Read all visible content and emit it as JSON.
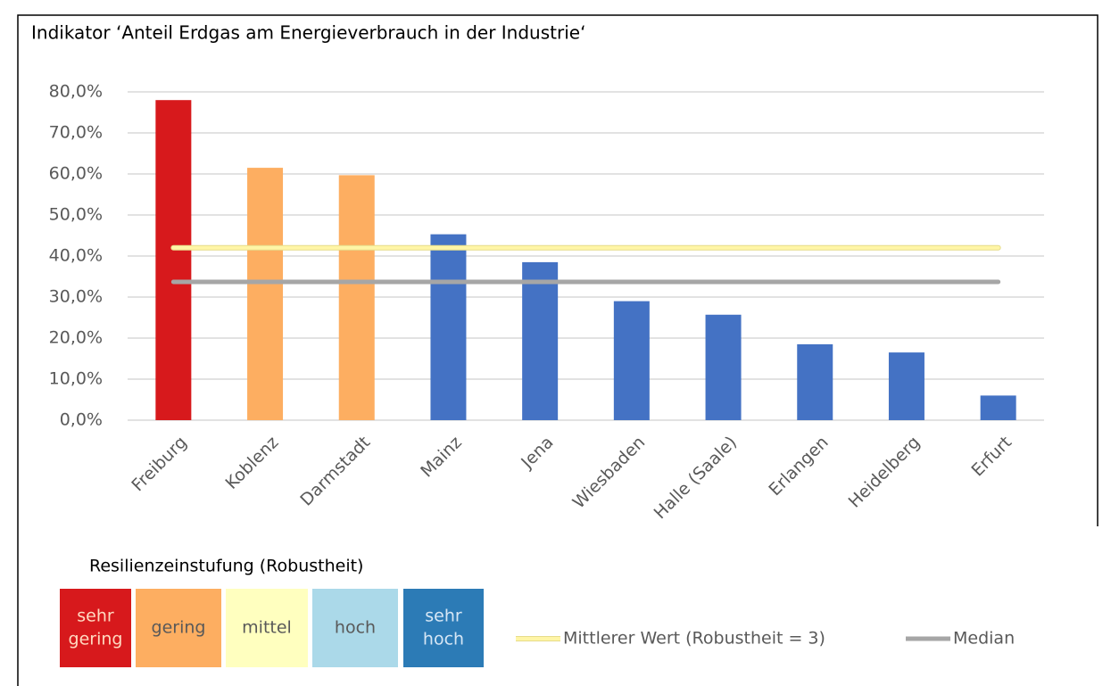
{
  "chart_data": {
    "type": "bar",
    "title": "Indikator ‘Anteil Erdgas am Energieverbrauch in der Industrie‘",
    "categories": [
      "Freiburg",
      "Koblenz",
      "Darmstadt",
      "Mainz",
      "Jena",
      "Wiesbaden",
      "Halle (Saale)",
      "Erlangen",
      "Heidelberg",
      "Erfurt"
    ],
    "values": [
      78.0,
      61.5,
      59.7,
      45.3,
      38.5,
      29.0,
      25.7,
      18.5,
      16.5,
      6.0
    ],
    "colors": [
      "#d7191c",
      "#fdae61",
      "#fdae61",
      "#4472c4",
      "#4472c4",
      "#4472c4",
      "#4472c4",
      "#4472c4",
      "#4472c4",
      "#4472c4"
    ],
    "ylim": [
      0,
      80
    ],
    "yticks": [
      {
        "value": 0,
        "label": "0,0%"
      },
      {
        "value": 10,
        "label": "10,0%"
      },
      {
        "value": 20,
        "label": "20,0%"
      },
      {
        "value": 30,
        "label": "30,0%"
      },
      {
        "value": 40,
        "label": "40,0%"
      },
      {
        "value": 50,
        "label": "50,0%"
      },
      {
        "value": 60,
        "label": "60,0%"
      },
      {
        "value": 70,
        "label": "70,0%"
      },
      {
        "value": 80,
        "label": "80,0%"
      }
    ],
    "grid": true,
    "reference_lines": [
      {
        "name": "Mittlerer Wert (Robustheit = 3)",
        "color": "#fff5a6",
        "value": 42.0
      },
      {
        "name": "Median",
        "color": "#a6a6a6",
        "value": 33.7
      }
    ],
    "rating_legend": {
      "title": "Resilienzeinstufung (Robustheit)",
      "items": [
        {
          "label": [
            "sehr",
            "gering"
          ],
          "color": "#d7191c"
        },
        {
          "label": [
            "gering"
          ],
          "color": "#fdae61"
        },
        {
          "label": [
            "mittel"
          ],
          "color": "#ffffbf"
        },
        {
          "label": [
            "hoch"
          ],
          "color": "#abd9e9"
        },
        {
          "label": [
            "sehr",
            "hoch"
          ],
          "color": "#2c7bb6"
        }
      ]
    }
  }
}
